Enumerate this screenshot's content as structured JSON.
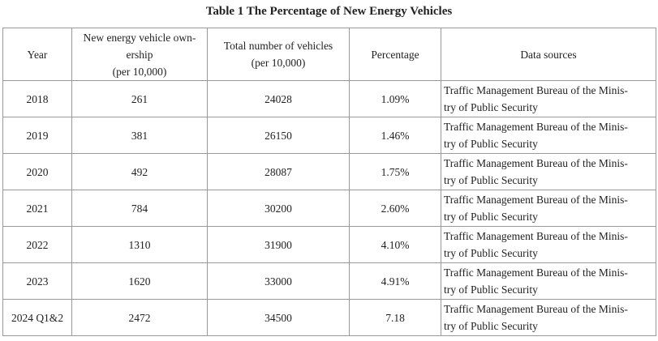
{
  "title": "Table 1 The Percentage of New Energy Vehicles",
  "table": {
    "header": [
      [
        "Year"
      ],
      [
        "New energy vehicle own-",
        "ership",
        "(per 10,000)"
      ],
      [
        "Total number of vehicles",
        "(per 10,000)"
      ],
      [
        "Percentage"
      ],
      [
        "Data sources"
      ]
    ],
    "rows": [
      [
        "2018",
        "261",
        "24028",
        "1.09%",
        [
          "Traffic Management Bureau of the Minis-",
          "try of Public Security"
        ]
      ],
      [
        "2019",
        "381",
        "26150",
        "1.46%",
        [
          "Traffic Management Bureau of the Minis-",
          "try of Public Security"
        ]
      ],
      [
        "2020",
        "492",
        "28087",
        "1.75%",
        [
          "Traffic Management Bureau of the Minis-",
          "try of Public Security"
        ]
      ],
      [
        "2021",
        "784",
        "30200",
        "2.60%",
        [
          "Traffic Management Bureau of the Minis-",
          "try of Public Security"
        ]
      ],
      [
        "2022",
        "1310",
        "31900",
        "4.10%",
        [
          "Traffic Management Bureau of the Minis-",
          "try of Public Security"
        ]
      ],
      [
        "2023",
        "1620",
        "33000",
        "4.91%",
        [
          "Traffic Management Bureau of the Minis-",
          "try of Public Security"
        ]
      ],
      [
        "2024 Q1&2",
        "2472",
        "34500",
        "7.18",
        [
          "Traffic Management Bureau of the Minis-",
          "try of Public Security"
        ]
      ]
    ]
  }
}
